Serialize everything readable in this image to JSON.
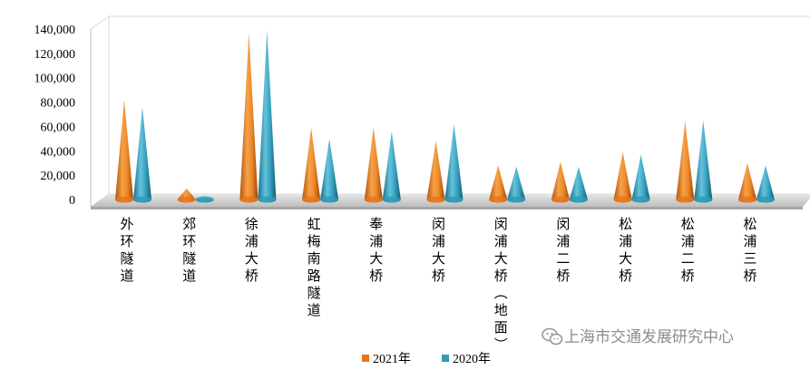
{
  "chart_data": {
    "type": "bar",
    "style": "3d-cone",
    "categories": [
      "外环隧道",
      "郊环隧道",
      "徐浦大桥",
      "虹梅南路隧道",
      "奉浦大桥",
      "闵浦大桥",
      "闵浦大桥（地面）",
      "闵浦二桥",
      "松浦大桥",
      "松浦二桥",
      "松浦三桥"
    ],
    "series": [
      {
        "name": "2021年",
        "color": "#e8761c",
        "values": [
          82000,
          9000,
          137000,
          59000,
          59000,
          48000,
          28000,
          31000,
          39000,
          64000,
          30000
        ]
      },
      {
        "name": "2020年",
        "color": "#2e9bb8",
        "values": [
          76000,
          1000,
          139000,
          50000,
          56000,
          62000,
          27000,
          27000,
          37000,
          65000,
          28000
        ]
      }
    ],
    "yticks": [
      "0",
      "20,000",
      "40,000",
      "60,000",
      "80,000",
      "100,000",
      "120,000",
      "140,000"
    ],
    "ylim": [
      0,
      140000
    ],
    "grid": false,
    "legend": "bottom-center"
  },
  "watermark": {
    "text": "上海市交通发展研究中心",
    "icon": "wechat-icon"
  }
}
